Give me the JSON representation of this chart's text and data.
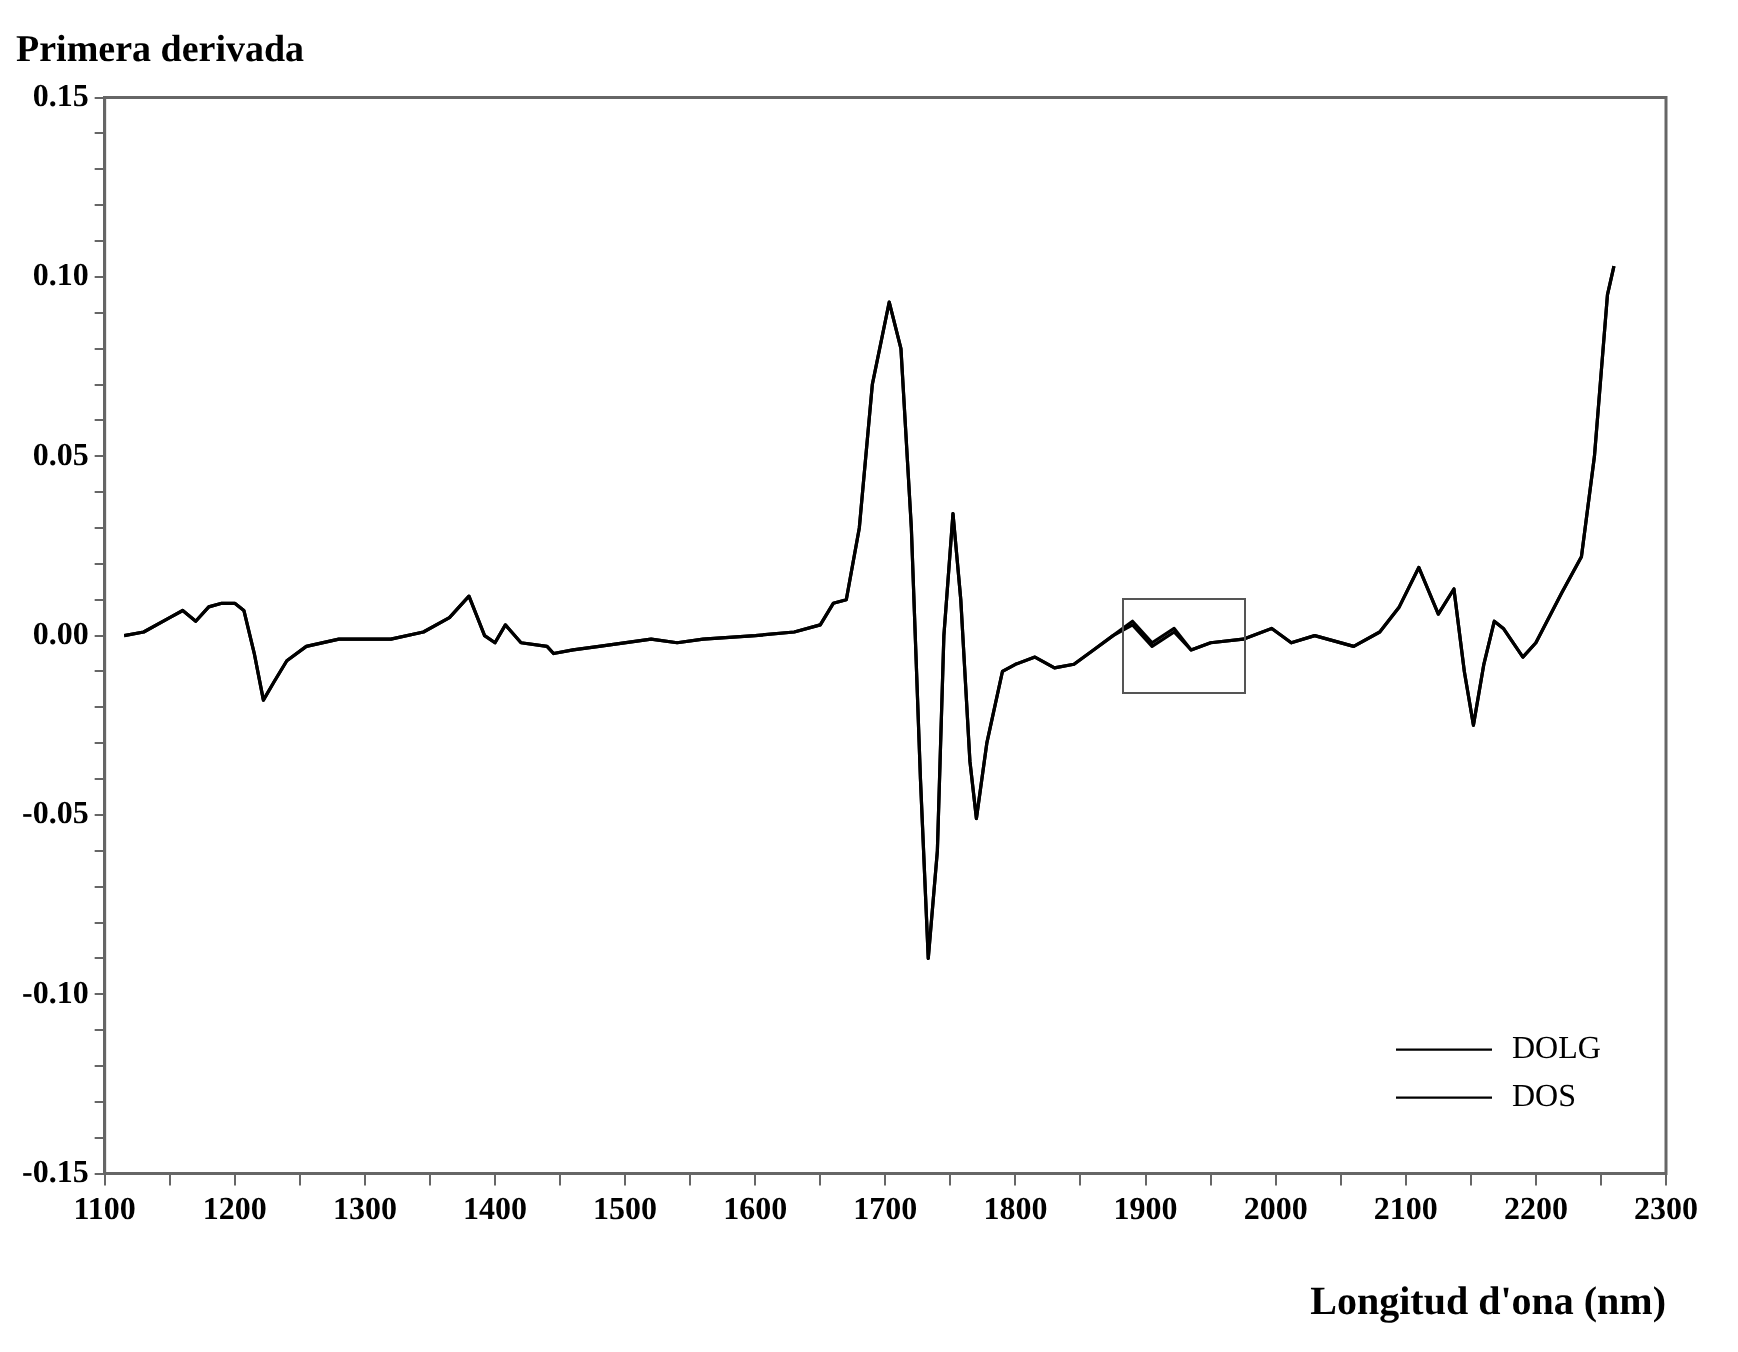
{
  "chart_data": {
    "type": "line",
    "title": "Primera derivada",
    "xlabel": "Longitud d'ona (nm)",
    "xlim": [
      1100,
      2300
    ],
    "xticks": [
      1100,
      {
        "value": 1150,
        "label": null
      },
      1200,
      {
        "value": 1250,
        "label": null
      },
      1300,
      {
        "value": 1350,
        "label": null
      },
      1400,
      {
        "value": 1450,
        "label": null
      },
      1500,
      {
        "value": 1550,
        "label": null
      },
      1600,
      {
        "value": 1650,
        "label": null
      },
      1700,
      {
        "value": 1750,
        "label": null
      },
      1800,
      {
        "value": 1850,
        "label": null
      },
      1900,
      {
        "value": 1950,
        "label": null
      },
      2000,
      {
        "value": 2050,
        "label": null
      },
      2100,
      {
        "value": 2150,
        "label": null
      },
      2200,
      {
        "value": 2250,
        "label": null
      },
      2300
    ],
    "ylim": [
      -0.15,
      0.15
    ],
    "yticks": [
      {
        "value": -0.15,
        "label": "-0.15"
      },
      {
        "value": -0.14,
        "label": null
      },
      {
        "value": -0.13,
        "label": null
      },
      {
        "value": -0.12,
        "label": null
      },
      {
        "value": -0.11,
        "label": null
      },
      {
        "value": -0.1,
        "label": "-0.10"
      },
      {
        "value": -0.09,
        "label": null
      },
      {
        "value": -0.08,
        "label": null
      },
      {
        "value": -0.07,
        "label": null
      },
      {
        "value": -0.06,
        "label": null
      },
      {
        "value": -0.05,
        "label": "-0.05"
      },
      {
        "value": -0.04,
        "label": null
      },
      {
        "value": -0.03,
        "label": null
      },
      {
        "value": -0.02,
        "label": null
      },
      {
        "value": -0.01,
        "label": null
      },
      {
        "value": 0,
        "label": "0.00"
      },
      {
        "value": 0.01,
        "label": null
      },
      {
        "value": 0.02,
        "label": null
      },
      {
        "value": 0.03,
        "label": null
      },
      {
        "value": 0.04,
        "label": null
      },
      {
        "value": 0.05,
        "label": "0.05"
      },
      {
        "value": 0.06,
        "label": null
      },
      {
        "value": 0.07,
        "label": null
      },
      {
        "value": 0.08,
        "label": null
      },
      {
        "value": 0.09,
        "label": null
      },
      {
        "value": 0.1,
        "label": "0.10"
      },
      {
        "value": 0.11,
        "label": null
      },
      {
        "value": 0.12,
        "label": null
      },
      {
        "value": 0.13,
        "label": null
      },
      {
        "value": 0.14,
        "label": null
      },
      {
        "value": 0.15,
        "label": "0.15"
      }
    ],
    "x": [
      1115,
      1130,
      1150,
      1160,
      1170,
      1180,
      1190,
      1200,
      1207,
      1215,
      1222,
      1230,
      1240,
      1255,
      1280,
      1320,
      1345,
      1365,
      1380,
      1392,
      1400,
      1408,
      1420,
      1440,
      1445,
      1460,
      1480,
      1520,
      1540,
      1560,
      1600,
      1630,
      1650,
      1660,
      1670,
      1680,
      1690,
      1703,
      1712,
      1720,
      1727,
      1733,
      1740,
      1745,
      1752,
      1758,
      1765,
      1770,
      1778,
      1790,
      1800,
      1815,
      1830,
      1845,
      1860,
      1875,
      1890,
      1905,
      1922,
      1935,
      1950,
      1975,
      1997,
      2012,
      2030,
      2060,
      2080,
      2095,
      2110,
      2125,
      2137,
      2145,
      2152,
      2160,
      2168,
      2175,
      2190,
      2200,
      2220,
      2235,
      2245,
      2255,
      2260
    ],
    "series": [
      {
        "name": "DOLG",
        "color": "#000000",
        "values": [
          0.0,
          0.001,
          0.005,
          0.007,
          0.004,
          0.008,
          0.009,
          0.009,
          0.007,
          -0.005,
          -0.018,
          -0.013,
          -0.007,
          -0.003,
          -0.001,
          -0.001,
          0.001,
          0.005,
          0.011,
          0.0,
          -0.002,
          0.003,
          -0.002,
          -0.003,
          -0.005,
          -0.004,
          -0.003,
          -0.001,
          -0.002,
          -0.001,
          0.0,
          0.001,
          0.003,
          0.009,
          0.01,
          0.03,
          0.07,
          0.093,
          0.08,
          0.03,
          -0.04,
          -0.09,
          -0.06,
          0.0,
          0.034,
          0.01,
          -0.035,
          -0.051,
          -0.03,
          -0.01,
          -0.008,
          -0.006,
          -0.009,
          -0.008,
          -0.004,
          0.0,
          0.004,
          -0.002,
          0.002,
          -0.004,
          -0.002,
          -0.001,
          0.002,
          -0.002,
          0.0,
          -0.003,
          0.001,
          0.008,
          0.019,
          0.006,
          0.013,
          -0.01,
          -0.025,
          -0.008,
          0.004,
          0.002,
          -0.006,
          -0.002,
          0.012,
          0.022,
          0.05,
          0.095,
          0.103
        ]
      },
      {
        "name": "DOS",
        "color": "#000000",
        "values": [
          0.0,
          0.001,
          0.005,
          0.007,
          0.004,
          0.008,
          0.009,
          0.009,
          0.007,
          -0.005,
          -0.018,
          -0.013,
          -0.007,
          -0.003,
          -0.001,
          -0.001,
          0.001,
          0.005,
          0.011,
          0.0,
          -0.002,
          0.003,
          -0.002,
          -0.003,
          -0.005,
          -0.004,
          -0.003,
          -0.001,
          -0.002,
          -0.001,
          0.0,
          0.001,
          0.003,
          0.009,
          0.01,
          0.03,
          0.07,
          0.093,
          0.08,
          0.03,
          -0.04,
          -0.09,
          -0.06,
          0.0,
          0.034,
          0.01,
          -0.035,
          -0.051,
          -0.03,
          -0.01,
          -0.008,
          -0.006,
          -0.009,
          -0.008,
          -0.004,
          0.0,
          0.003,
          -0.003,
          0.001,
          -0.004,
          -0.002,
          -0.001,
          0.002,
          -0.002,
          0.0,
          -0.003,
          0.001,
          0.008,
          0.019,
          0.006,
          0.013,
          -0.01,
          -0.025,
          -0.008,
          0.004,
          0.002,
          -0.006,
          -0.002,
          0.012,
          0.022,
          0.05,
          0.095,
          0.103
        ]
      }
    ],
    "legend": "bottom right",
    "grid": false,
    "marker": "none",
    "line_style": "solid"
  }
}
